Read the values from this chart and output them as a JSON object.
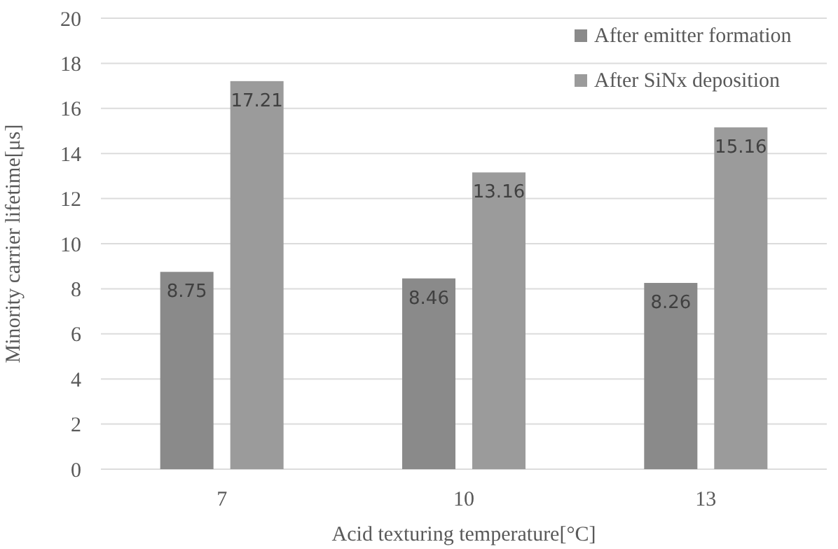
{
  "chart_data": {
    "type": "bar",
    "xlabel": "Acid texturing temperature[°C]",
    "ylabel": "Minority carrier lifetime[μs]",
    "categories": [
      "7",
      "10",
      "13"
    ],
    "series": [
      {
        "name": "After emitter formation",
        "color": "#8a8a8a",
        "values": [
          8.75,
          8.46,
          8.26
        ]
      },
      {
        "name": "After SiNx deposition",
        "color": "#9b9b9b",
        "values": [
          17.21,
          13.16,
          15.16
        ]
      }
    ],
    "ylim": [
      0,
      20
    ],
    "yticks": [
      0,
      2,
      4,
      6,
      8,
      10,
      12,
      14,
      16,
      18,
      20
    ],
    "grid": "y",
    "legend": "top right",
    "data_labels": true
  }
}
